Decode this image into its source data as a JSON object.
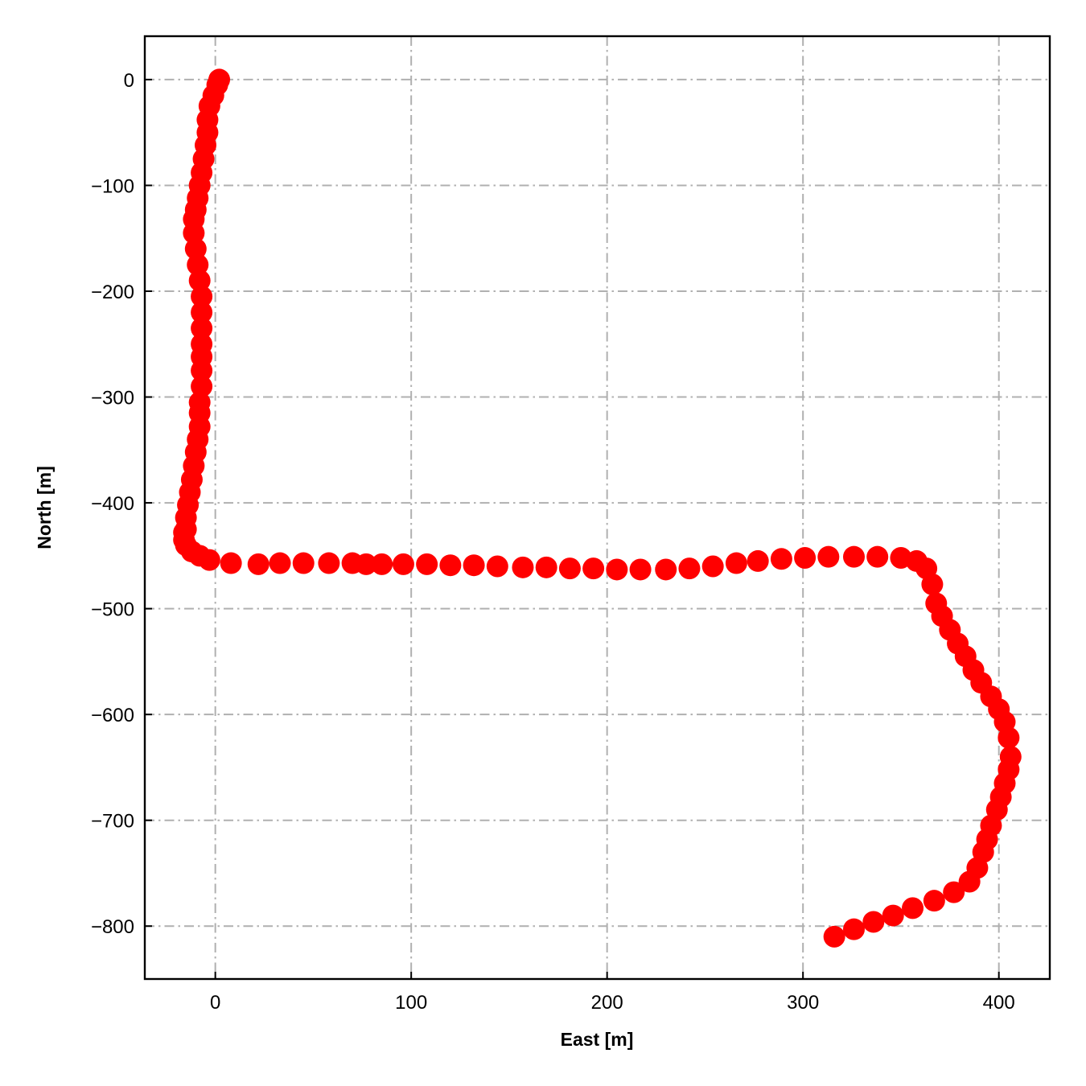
{
  "chart_data": {
    "type": "scatter",
    "title": "",
    "xlabel": "East [m]",
    "ylabel": "North [m]",
    "xlim": [
      -36,
      426
    ],
    "ylim": [
      -850,
      41
    ],
    "xticks": [
      0,
      100,
      200,
      300,
      400
    ],
    "yticks": [
      0,
      -100,
      -200,
      -300,
      -400,
      -500,
      -600,
      -700,
      -800
    ],
    "xtick_labels": [
      "0",
      "100",
      "200",
      "300",
      "400"
    ],
    "ytick_labels": [
      "0",
      "−100",
      "−200",
      "−300",
      "−400",
      "−500",
      "−600",
      "−700",
      "−800"
    ],
    "grid": true,
    "grid_style": "dash-dot",
    "marker_color": "#ff0000",
    "series": [
      {
        "x": [
          2,
          1,
          -1,
          -3,
          -4,
          -4,
          -5,
          -6,
          -7,
          -8,
          -9,
          -10,
          -11,
          -11,
          -10,
          -9,
          -8,
          -7,
          -7,
          -7,
          -7,
          -7,
          -7,
          -7,
          -8,
          -8,
          -8,
          -9,
          -10,
          -11,
          -12,
          -13,
          -14,
          -15,
          -15,
          -16,
          -16,
          -15,
          -12,
          -8,
          -3,
          8,
          22,
          33,
          45,
          58,
          70,
          77,
          85,
          96,
          108,
          120,
          132,
          144,
          157,
          169,
          181,
          193,
          205,
          217,
          230,
          242,
          254,
          266,
          277,
          289,
          301,
          313,
          326,
          338,
          350,
          358,
          363,
          366,
          368,
          371,
          375,
          379,
          383,
          387,
          391,
          396,
          400,
          403,
          405,
          406,
          405,
          403,
          401,
          399,
          396,
          394,
          392,
          389,
          385,
          377,
          367,
          356,
          346,
          336,
          326,
          316
        ],
        "y": [
          0,
          -5,
          -15,
          -25,
          -38,
          -50,
          -62,
          -75,
          -88,
          -100,
          -112,
          -123,
          -132,
          -145,
          -160,
          -175,
          -190,
          -205,
          -220,
          -235,
          -250,
          -262,
          -275,
          -290,
          -305,
          -315,
          -328,
          -340,
          -352,
          -365,
          -378,
          -390,
          -402,
          -414,
          -425,
          -428,
          -435,
          -440,
          -446,
          -450,
          -454,
          -457,
          -458,
          -457,
          -457,
          -457,
          -457,
          -458,
          -458,
          -458,
          -458,
          -459,
          -459,
          -460,
          -461,
          -461,
          -462,
          -462,
          -463,
          -463,
          -463,
          -462,
          -460,
          -457,
          -455,
          -453,
          -452,
          -451,
          -451,
          -451,
          -452,
          -455,
          -462,
          -477,
          -495,
          -507,
          -520,
          -533,
          -545,
          -558,
          -570,
          -583,
          -595,
          -607,
          -622,
          -640,
          -652,
          -665,
          -678,
          -690,
          -705,
          -718,
          -730,
          -745,
          -758,
          -768,
          -776,
          -783,
          -790,
          -796,
          -803,
          -810
        ]
      }
    ]
  }
}
